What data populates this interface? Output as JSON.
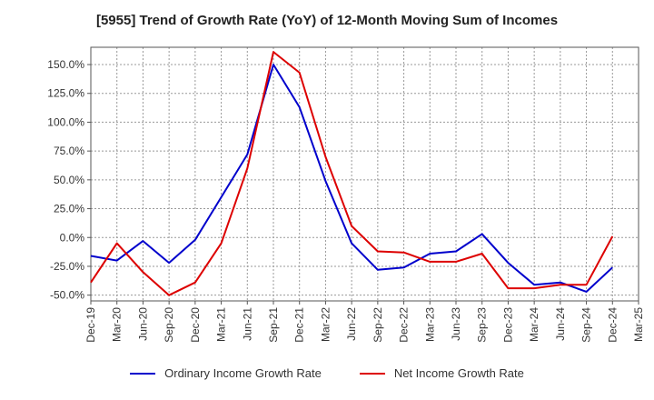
{
  "chart_data": {
    "type": "line",
    "title": "[5955]  Trend of Growth Rate (YoY) of 12-Month Moving Sum of Incomes",
    "x": [
      "Dec-19",
      "Mar-20",
      "Jun-20",
      "Sep-20",
      "Dec-20",
      "Mar-21",
      "Jun-21",
      "Sep-21",
      "Dec-21",
      "Mar-22",
      "Jun-22",
      "Sep-22",
      "Dec-22",
      "Mar-23",
      "Jun-23",
      "Sep-23",
      "Dec-23",
      "Mar-24",
      "Jun-24",
      "Sep-24",
      "Dec-24",
      "Mar-25"
    ],
    "ylim": [
      -55,
      165
    ],
    "yticks": [
      -50,
      -25,
      0,
      25,
      50,
      75,
      100,
      125,
      150
    ],
    "ytick_labels": [
      "-50.0%",
      "-25.0%",
      "0.0%",
      "25.0%",
      "50.0%",
      "75.0%",
      "100.0%",
      "125.0%",
      "150.0%"
    ],
    "grid": true,
    "legend_position": "bottom",
    "series": [
      {
        "name": "Ordinary Income Growth Rate",
        "color": "#0000cc",
        "values": [
          -16,
          -20,
          -3,
          -22,
          -2,
          35,
          72,
          150,
          113,
          49,
          -5,
          -28,
          -26,
          -14,
          -12,
          3,
          -22,
          -41,
          -39,
          -47,
          -26,
          null
        ]
      },
      {
        "name": "Net Income Growth Rate",
        "color": "#dd0000",
        "values": [
          -39,
          -5,
          -30,
          -50,
          -39,
          -5,
          60,
          161,
          143,
          70,
          10,
          -12,
          -13,
          -21,
          -21,
          -14,
          -44,
          -44,
          -41,
          -41,
          1,
          null
        ]
      }
    ]
  }
}
